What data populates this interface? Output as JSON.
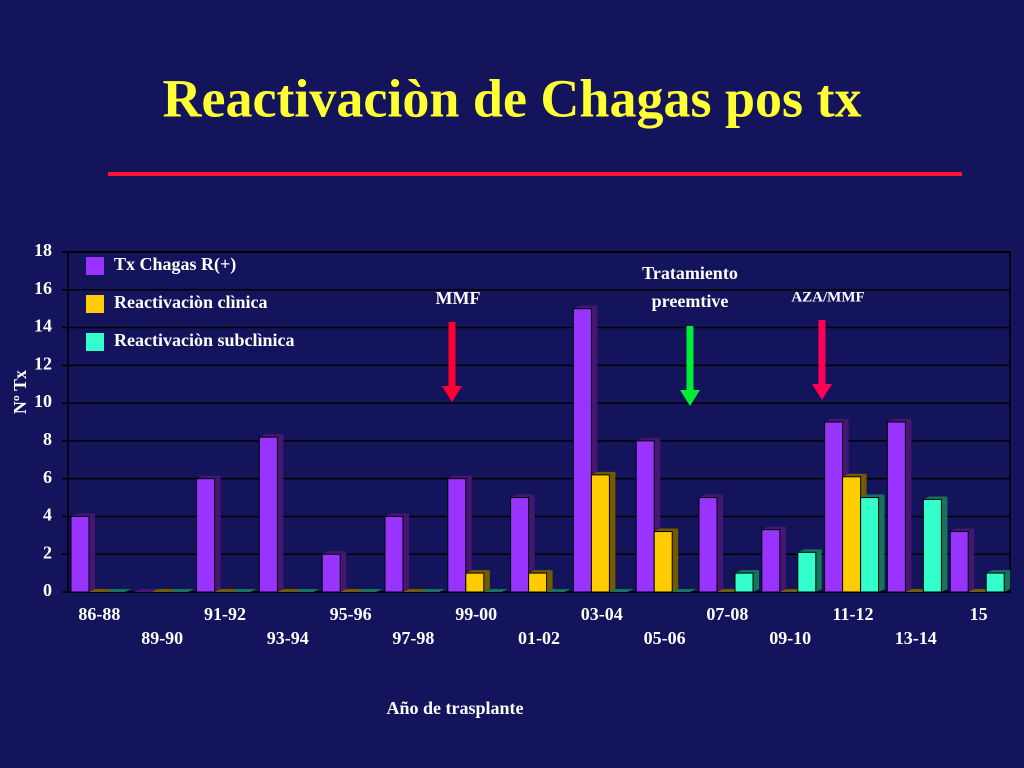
{
  "chart_data": {
    "type": "bar",
    "title": "Reactivaciòn de Chagas pos tx",
    "y_label": "Nº Tx",
    "x_label": "Año de trasplante",
    "categories": [
      "86-88",
      "89-90",
      "91-92",
      "93-94",
      "95-96",
      "97-98",
      "99-00",
      "01-02",
      "03-04",
      "05-06",
      "07-08",
      "09-10",
      "11-12",
      "13-14",
      "15"
    ],
    "series": [
      {
        "name": "Tx Chagas R(+)",
        "color": "#9933ff",
        "values": [
          4,
          0,
          6,
          8.2,
          2,
          4,
          6,
          5,
          15,
          8,
          5,
          3.3,
          9,
          9,
          3.2
        ]
      },
      {
        "name": "Reactivaciòn clìnica",
        "color": "#ffcc00",
        "values": [
          0,
          0,
          0,
          0,
          0,
          0,
          1,
          1,
          6.2,
          3.2,
          0,
          0,
          6.1,
          0,
          0
        ]
      },
      {
        "name": "Reactivaciòn subclìnica",
        "color": "#33ffcc",
        "values": [
          0,
          0,
          0,
          0,
          0,
          0,
          0,
          0,
          0,
          0,
          1,
          2.1,
          5,
          4.9,
          1
        ]
      }
    ],
    "ylim": [
      0,
      18
    ],
    "yticks": [
      0,
      2,
      4,
      6,
      8,
      10,
      12,
      14,
      16,
      18
    ],
    "grid": true,
    "annotations": [
      {
        "lines": [
          "MMF"
        ],
        "color": "#ff0033"
      },
      {
        "lines": [
          "Tratamiento",
          "preemtive"
        ],
        "color": "#00ee33"
      },
      {
        "lines": [
          "AZA/MMF"
        ],
        "color": "#ff0055"
      }
    ]
  }
}
